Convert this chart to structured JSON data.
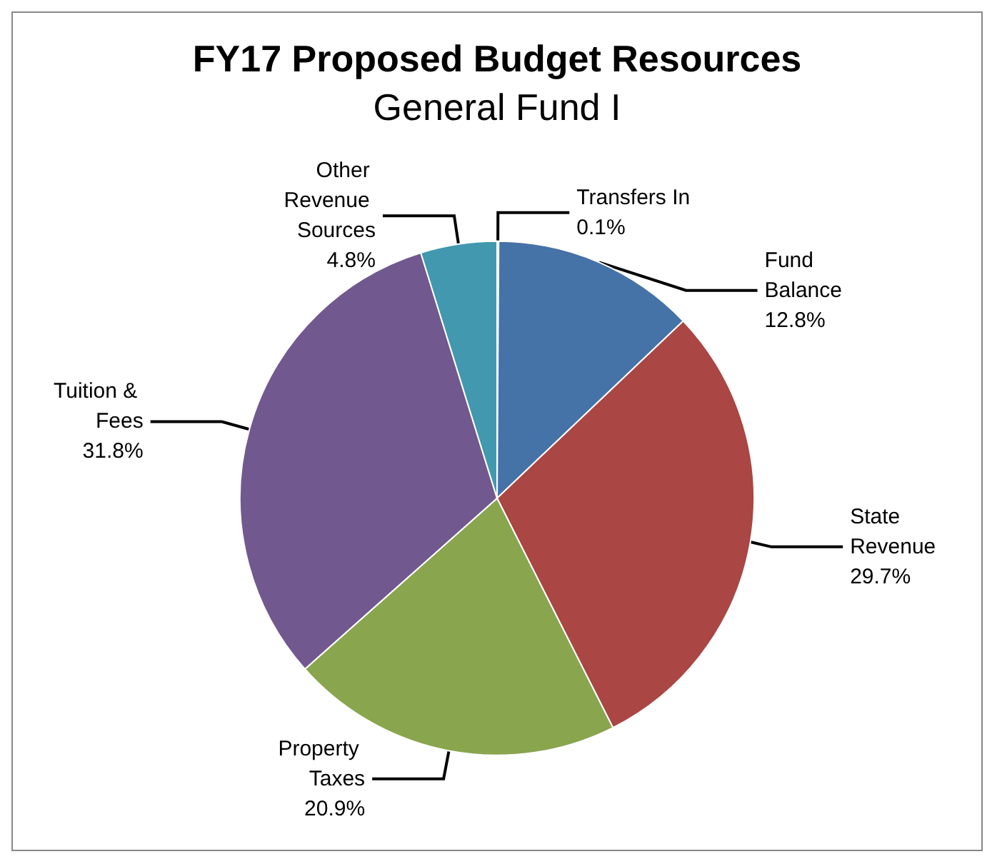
{
  "chart_data": {
    "type": "pie",
    "title": "FY17 Proposed Budget Resources",
    "subtitle": "General Fund I",
    "categories": [
      "Transfers In",
      "Fund Balance",
      "State Revenue",
      "Property Taxes",
      "Tuition & Fees",
      "Other Revenue Sources"
    ],
    "values": [
      0.1,
      12.8,
      29.7,
      20.9,
      31.8,
      4.8
    ],
    "colors": [
      "#db843d",
      "#4572a7",
      "#aa4643",
      "#89a54e",
      "#71588f",
      "#4198af"
    ],
    "value_labels": [
      "0.1%",
      "12.8%",
      "29.7%",
      "20.9%",
      "31.8%",
      "4.8%"
    ],
    "legend": false
  }
}
